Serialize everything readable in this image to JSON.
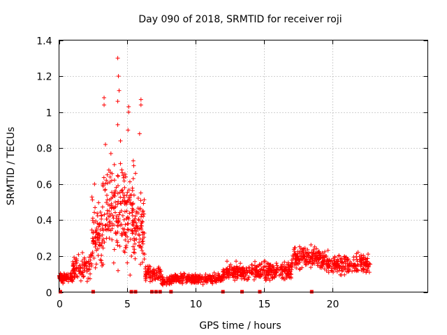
{
  "chart_data": {
    "type": "scatter",
    "title": "Day 090 of 2018, SRMTID for receiver roji",
    "xlabel": "GPS time / hours",
    "ylabel": "SRMTID / TECUs",
    "xlim": [
      0,
      27
    ],
    "ylim": [
      0,
      1.4
    ],
    "xticks": [
      0,
      5,
      10,
      15,
      20
    ],
    "yticks": [
      0,
      0.2,
      0.4,
      0.6,
      0.8,
      1,
      1.2,
      1.4
    ],
    "ytick_labels": [
      "0",
      "0.2",
      "0.4",
      "0.6",
      "0.8",
      "1",
      "1.2",
      "1.4"
    ],
    "grid": true,
    "series": [
      {
        "name": "SRMTID",
        "color": "#ff0000",
        "marker": "plus",
        "segments": [
          {
            "x": [
              0.0,
              1.0
            ],
            "base": 0.08,
            "spread": 0.025,
            "n": 90
          },
          {
            "x": [
              1.0,
              2.4
            ],
            "base": 0.14,
            "spread": 0.06,
            "n": 90
          },
          {
            "x": [
              2.4,
              3.2
            ],
            "base": 0.32,
            "spread": 0.15,
            "n": 80
          },
          {
            "x": [
              3.2,
              4.8
            ],
            "base": 0.45,
            "spread": 0.22,
            "n": 140
          },
          {
            "x": [
              4.8,
              5.5
            ],
            "base": 0.42,
            "spread": 0.22,
            "n": 80
          },
          {
            "x": [
              5.5,
              6.3
            ],
            "base": 0.35,
            "spread": 0.18,
            "n": 70
          },
          {
            "x": [
              6.3,
              7.5
            ],
            "base": 0.1,
            "spread": 0.04,
            "n": 80
          },
          {
            "x": [
              7.5,
              8.2
            ],
            "base": 0.06,
            "spread": 0.02,
            "n": 50
          },
          {
            "x": [
              8.2,
              12.0
            ],
            "base": 0.075,
            "spread": 0.025,
            "n": 260
          },
          {
            "x": [
              12.0,
              14.0
            ],
            "base": 0.11,
            "spread": 0.04,
            "n": 140
          },
          {
            "x": [
              14.0,
              17.0
            ],
            "base": 0.12,
            "spread": 0.045,
            "n": 200
          },
          {
            "x": [
              17.0,
              19.5
            ],
            "base": 0.19,
            "spread": 0.055,
            "n": 170
          },
          {
            "x": [
              19.5,
              22.8
            ],
            "base": 0.16,
            "spread": 0.05,
            "n": 200
          }
        ],
        "outliers": [
          {
            "x": 4.3,
            "y": 1.3
          },
          {
            "x": 4.35,
            "y": 1.2
          },
          {
            "x": 4.4,
            "y": 1.12
          },
          {
            "x": 4.3,
            "y": 1.06
          },
          {
            "x": 3.3,
            "y": 1.08
          },
          {
            "x": 3.3,
            "y": 1.04
          },
          {
            "x": 5.1,
            "y": 1.03
          },
          {
            "x": 5.1,
            "y": 1.0
          },
          {
            "x": 5.05,
            "y": 0.9
          },
          {
            "x": 6.0,
            "y": 1.07
          },
          {
            "x": 6.0,
            "y": 1.04
          },
          {
            "x": 3.4,
            "y": 0.82
          },
          {
            "x": 4.5,
            "y": 0.84
          },
          {
            "x": 4.3,
            "y": 0.93
          },
          {
            "x": 5.9,
            "y": 0.88
          },
          {
            "x": 2.6,
            "y": 0.6
          },
          {
            "x": 3.8,
            "y": 0.77
          },
          {
            "x": 5.6,
            "y": 0.66
          }
        ]
      }
    ],
    "baseline_markers_x": [
      0.1,
      2.5,
      5.3,
      5.6,
      6.8,
      7.1,
      7.4,
      8.2,
      12.0,
      13.4,
      14.7,
      18.5
    ]
  }
}
